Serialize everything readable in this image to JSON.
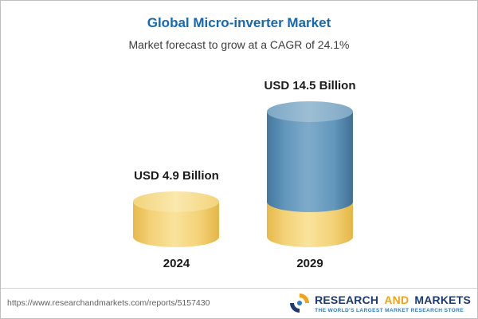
{
  "header": {
    "title": "Global Micro-inverter Market",
    "subtitle": "Market forecast to grow at a CAGR of 24.1%"
  },
  "chart_data": {
    "type": "bar",
    "variant": "3d-cylinder-stacked",
    "title": "Global Micro-inverter Market",
    "subtitle": "Market forecast to grow at a CAGR of 24.1%",
    "cagr_percent": 24.1,
    "categories": [
      "2024",
      "2029"
    ],
    "values": [
      4.9,
      14.5
    ],
    "value_labels": [
      "USD 4.9 Billion",
      "USD 14.5 Billion"
    ],
    "unit": "USD Billion",
    "xlabel": "",
    "ylabel": "",
    "grid": false,
    "legend": false,
    "colors": {
      "base_segment": "#F0CB66",
      "growth_segment": "#5B8DB4"
    }
  },
  "footer": {
    "url": "https://www.researchandmarkets.com/reports/5157430",
    "logo": {
      "research": "RESEARCH",
      "and": "AND",
      "markets": "MARKETS",
      "tagline": "THE WORLD'S LARGEST MARKET RESEARCH STORE"
    }
  },
  "colors": {
    "title_blue": "#1569B3",
    "text_dark": "#1C1C1C",
    "logo_navy": "#1E3A6E",
    "logo_orange": "#F0A31B",
    "tagline_blue": "#2D7DC2"
  }
}
